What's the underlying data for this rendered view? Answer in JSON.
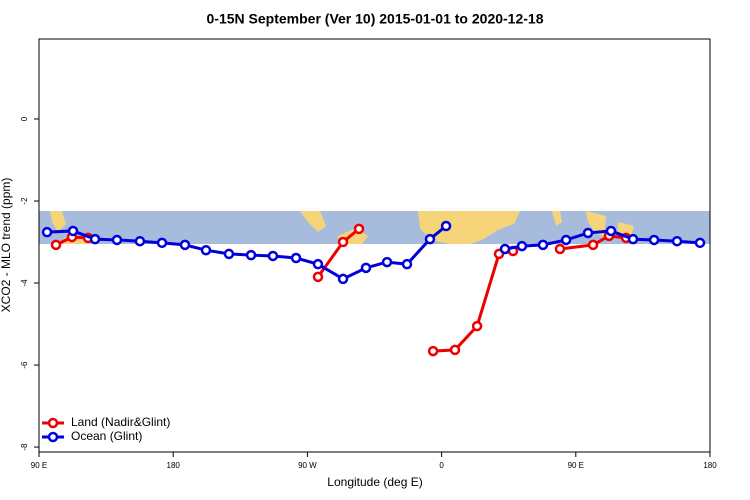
{
  "chart_data": {
    "type": "line",
    "title": "0-15N September (Ver 10)   2015-01-01 to 2020-12-18",
    "x_label": "Longitude (deg E)",
    "y_label": "XCO2 - MLO trend (ppm)",
    "xlim": [
      90,
      540
    ],
    "xticks": [
      {
        "value": 90,
        "label": "90 E"
      },
      {
        "value": 180,
        "label": "180"
      },
      {
        "value": 270,
        "label": "90 W"
      },
      {
        "value": 360,
        "label": "0"
      },
      {
        "value": 450,
        "label": "90 E"
      },
      {
        "value": 540,
        "label": "180"
      }
    ],
    "ylim": [
      -8.12,
      1.95
    ],
    "yticks": [
      0,
      -2,
      -4,
      -6,
      -8
    ],
    "legend": "bottom-left",
    "series": [
      {
        "name": "Land (Nadir&Glint)",
        "color": "#ee0000",
        "x": [
          101.4,
          112.1,
          122.9,
          null,
          277.1,
          293.9,
          304.6,
          null,
          354.3,
          369.0,
          383.8,
          398.5,
          407.9,
          null,
          439.4,
          461.6,
          472.3,
          483.7
        ],
        "values": [
          -3.07,
          -2.88,
          -2.9,
          null,
          -3.85,
          -3.0,
          -2.68,
          null,
          -5.66,
          -5.63,
          -5.05,
          -3.29,
          -3.22,
          null,
          -3.17,
          -3.07,
          -2.85,
          -2.9
        ]
      },
      {
        "name": "Ocean (Glint)",
        "color": "#0000dd",
        "x": [
          95.4,
          112.8,
          127.6,
          142.3,
          157.7,
          172.5,
          187.9,
          202.0,
          217.4,
          232.2,
          246.9,
          262.4,
          277.1,
          293.9,
          309.3,
          323.4,
          336.8,
          352.2,
          363.0,
          null,
          402.5,
          413.9,
          428.0,
          443.5,
          458.2,
          473.6,
          488.4,
          502.5,
          517.9,
          533.3
        ],
        "values": [
          -2.76,
          -2.73,
          -2.93,
          -2.95,
          -2.98,
          -3.02,
          -3.07,
          -3.2,
          -3.29,
          -3.32,
          -3.34,
          -3.39,
          -3.54,
          -3.9,
          -3.63,
          -3.49,
          -3.54,
          -2.93,
          -2.61,
          null,
          -3.17,
          -3.1,
          -3.07,
          -2.95,
          -2.78,
          -2.73,
          -2.93,
          -2.95,
          -2.98,
          -3.02
        ]
      }
    ]
  }
}
